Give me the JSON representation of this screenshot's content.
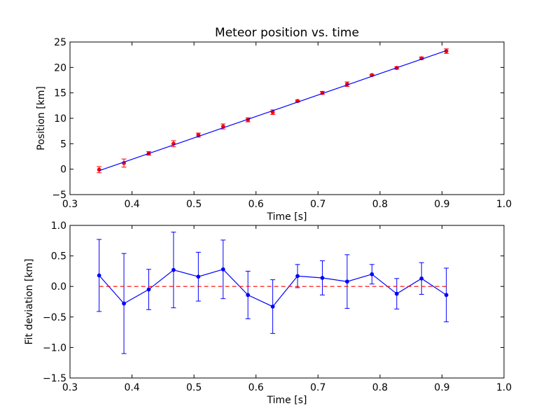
{
  "chart_data": [
    {
      "type": "scatter",
      "title": "Meteor position vs. time",
      "xlabel": "Time [s]",
      "ylabel": "Position [km]",
      "xlim": [
        0.3,
        1.0
      ],
      "ylim": [
        -5,
        25
      ],
      "xticks": [
        "0.3",
        "0.4",
        "0.5",
        "0.6",
        "0.7",
        "0.8",
        "0.9",
        "1.0"
      ],
      "yticks": [
        "−5",
        "0",
        "5",
        "10",
        "15",
        "20",
        "25"
      ],
      "grid": false,
      "series": [
        {
          "kind": "errorbar-points",
          "color": "#ff0000",
          "x": [
            0.347,
            0.387,
            0.427,
            0.467,
            0.507,
            0.547,
            0.587,
            0.627,
            0.667,
            0.707,
            0.747,
            0.787,
            0.827,
            0.867,
            0.907
          ],
          "y": [
            -0.1,
            1.2,
            3.1,
            5.0,
            6.7,
            8.4,
            9.7,
            11.2,
            13.4,
            15.0,
            16.7,
            18.5,
            19.9,
            21.8,
            23.2
          ],
          "yerr": [
            0.6,
            0.8,
            0.35,
            0.6,
            0.4,
            0.5,
            0.4,
            0.45,
            0.2,
            0.3,
            0.45,
            0.15,
            0.25,
            0.25,
            0.45
          ]
        },
        {
          "kind": "fit-line",
          "color": "#0000ff",
          "x": [
            0.347,
            0.907
          ],
          "y": [
            -0.3,
            23.3
          ]
        }
      ]
    },
    {
      "type": "line",
      "title": "",
      "xlabel": "Time [s]",
      "ylabel": "Fit deviation [km]",
      "xlim": [
        0.3,
        1.0
      ],
      "ylim": [
        -1.5,
        1.0
      ],
      "xticks": [
        "0.3",
        "0.4",
        "0.5",
        "0.6",
        "0.7",
        "0.8",
        "0.9",
        "1.0"
      ],
      "yticks": [
        "−1.5",
        "−1.0",
        "−0.5",
        "0.0",
        "0.5",
        "1.0"
      ],
      "grid": false,
      "series": [
        {
          "kind": "errorbar-line",
          "color": "#0000ff",
          "x": [
            0.347,
            0.387,
            0.427,
            0.467,
            0.507,
            0.547,
            0.587,
            0.627,
            0.667,
            0.707,
            0.747,
            0.787,
            0.827,
            0.867,
            0.907
          ],
          "y": [
            0.18,
            -0.28,
            -0.05,
            0.27,
            0.16,
            0.28,
            -0.14,
            -0.33,
            0.17,
            0.14,
            0.08,
            0.2,
            -0.12,
            0.13,
            -0.14
          ],
          "yerr": [
            0.59,
            0.82,
            0.33,
            0.62,
            0.4,
            0.48,
            0.39,
            0.44,
            0.19,
            0.28,
            0.44,
            0.16,
            0.25,
            0.26,
            0.44
          ]
        },
        {
          "kind": "zero-line",
          "color": "#ff0000",
          "dashed": true,
          "x": [
            0.347,
            0.907
          ],
          "y": [
            0.0,
            0.0
          ]
        }
      ]
    }
  ]
}
